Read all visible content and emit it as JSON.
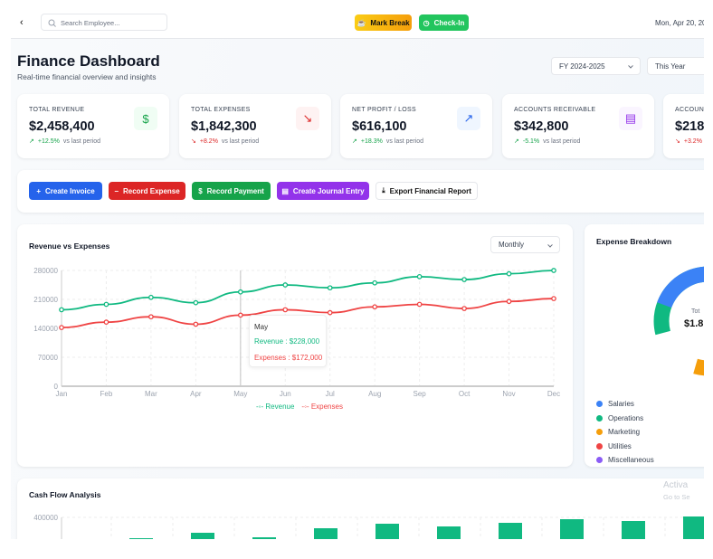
{
  "header": {
    "back_icon": "chevron-left-icon",
    "search_placeholder": "Search Employee...",
    "mark_break": "Mark Break",
    "check_in": "Check-In",
    "date": "Mon, Apr 20, 20"
  },
  "page": {
    "title": "Finance Dashboard",
    "subtitle": "Real-time financial overview and insights",
    "fiscal_year": "FY 2024-2025",
    "period": "This Year"
  },
  "kpis": [
    {
      "label": "TOTAL REVENUE",
      "value": "$2,458,400",
      "change": "+12.5%",
      "suffix": "vs last period",
      "trend": "up",
      "icon": "dollar-icon"
    },
    {
      "label": "TOTAL EXPENSES",
      "value": "$1,842,300",
      "change": "+8.2%",
      "suffix": "vs last period",
      "trend": "down",
      "icon": "trending-down-icon"
    },
    {
      "label": "NET PROFIT / LOSS",
      "value": "$616,100",
      "change": "+18.3%",
      "suffix": "vs last period",
      "trend": "up",
      "icon": "trending-up-icon"
    },
    {
      "label": "ACCOUNTS RECEIVABLE",
      "value": "$342,800",
      "change": "-5.1%",
      "suffix": "vs last period",
      "trend": "up",
      "icon": "document-icon"
    },
    {
      "label": "ACCOUNTS PAYABLE",
      "value": "$218,",
      "change": "+3.2%",
      "suffix": "",
      "trend": "down",
      "icon": ""
    }
  ],
  "actions": {
    "create_invoice": "Create Invoice",
    "record_expense": "Record Expense",
    "record_payment": "Record Payment",
    "journal": "Create Journal Entry",
    "export": "Export Financial Report"
  },
  "colors": {
    "blue": "#2563eb",
    "red": "#dc2626",
    "green": "#16a34a",
    "purple": "#9333ea",
    "revenue": "#10b981",
    "expenses": "#ef4444"
  },
  "rev_chart": {
    "title": "Revenue vs Expenses",
    "granularity": "Monthly"
  },
  "chart_data": [
    {
      "type": "line",
      "title": "Revenue vs Expenses",
      "categories": [
        "Jan",
        "Feb",
        "Mar",
        "Apr",
        "May",
        "Jun",
        "Jul",
        "Aug",
        "Sep",
        "Oct",
        "Nov",
        "Dec"
      ],
      "yticks": [
        "0",
        "70000",
        "140000",
        "210000",
        "280000"
      ],
      "ylim": [
        0,
        280000
      ],
      "grid": true,
      "legend": "bottom",
      "series": [
        {
          "name": "Revenue",
          "values": [
            185000,
            198000,
            215000,
            202000,
            228000,
            245000,
            238000,
            250000,
            265000,
            258000,
            272000,
            280000
          ]
        },
        {
          "name": "Expenses",
          "values": [
            142000,
            155000,
            168000,
            150000,
            172000,
            185000,
            178000,
            192000,
            198000,
            188000,
            205000,
            212000
          ]
        }
      ],
      "tooltip": {
        "title": "May",
        "revenue": "Revenue : $228,000",
        "expenses": "Expenses : $172,000"
      }
    },
    {
      "type": "pie",
      "title": "Expense Breakdown",
      "center_label": "Tot",
      "center_value": "$1.8",
      "categories": [
        "Salaries",
        "Operations",
        "Marketing",
        "Utilities",
        "Miscellaneous"
      ],
      "colors": [
        "#3b82f6",
        "#10b981",
        "#f59e0b",
        "#ef4444",
        "#8b5cf6"
      ]
    },
    {
      "type": "bar",
      "title": "Cash Flow Analysis",
      "ytick_top": "400000"
    }
  ],
  "watermark": {
    "line1": "Activa",
    "line2": "Go to Se"
  }
}
